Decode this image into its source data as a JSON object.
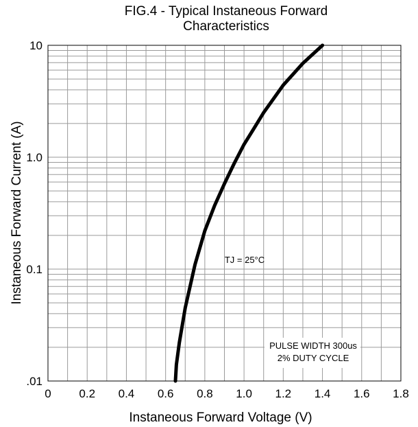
{
  "chart_data": {
    "type": "line",
    "title": "FIG.4 - Typical Instaneous Forward",
    "subtitle": "Characteristics",
    "xlabel": "Instaneous Forward Voltage (V)",
    "ylabel": "Instaneous Forward Current (A)",
    "xlim": [
      0,
      1.8
    ],
    "ylim": [
      0.01,
      10
    ],
    "yscale": "log",
    "grid": true,
    "x_ticks": [
      "0",
      "0.2",
      "0.4",
      "0.6",
      "0.8",
      "1.0",
      "1.2",
      "1.4",
      "1.6",
      "1.8"
    ],
    "y_ticks": [
      ".01",
      "0.1",
      "1.0",
      "10"
    ],
    "annotations": {
      "tj": "TJ = 25°C",
      "pulse_line1": "PULSE WIDTH 300us",
      "pulse_line2": "2% DUTY CYCLE"
    },
    "series": [
      {
        "x": [
          0.65,
          0.655,
          0.67,
          0.7,
          0.75,
          0.8,
          0.85,
          0.9,
          0.95,
          1.0,
          1.05,
          1.1,
          1.2,
          1.3,
          1.4
        ],
        "y": [
          0.01,
          0.014,
          0.022,
          0.045,
          0.11,
          0.22,
          0.37,
          0.58,
          0.88,
          1.3,
          1.8,
          2.5,
          4.4,
          6.9,
          10
        ]
      }
    ]
  }
}
